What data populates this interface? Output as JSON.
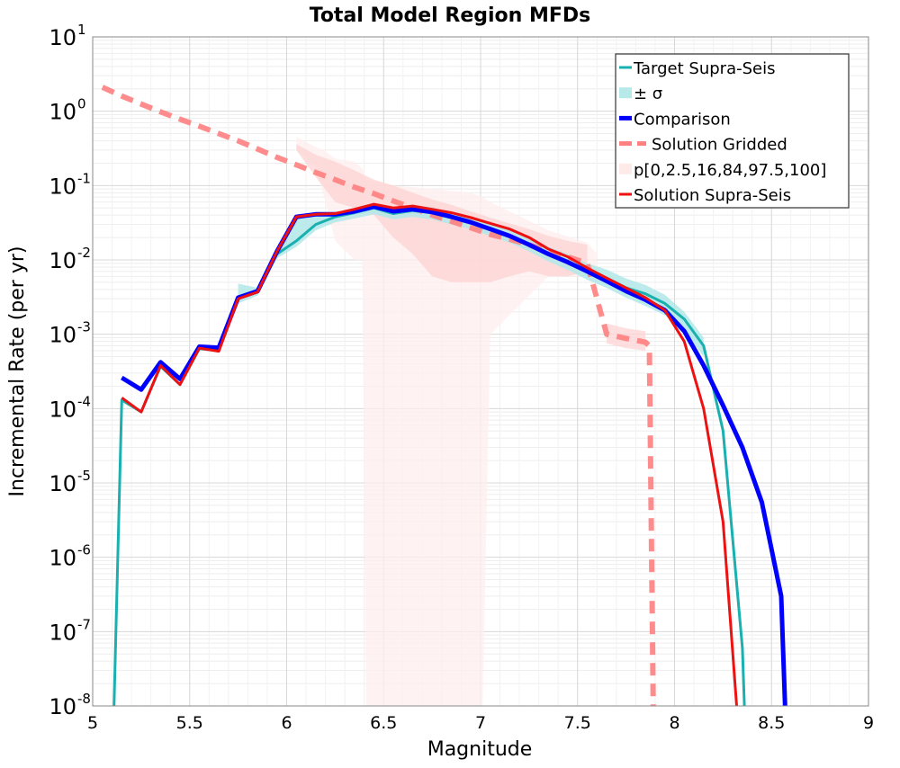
{
  "chart_data": {
    "type": "line",
    "title": "Total Model Region MFDs",
    "xlabel": "Magnitude",
    "ylabel": "Incremental Rate (per yr)",
    "xlim": [
      5,
      9
    ],
    "ylim": [
      1e-08,
      10
    ],
    "yscale": "log",
    "grid": true,
    "legend_position": "top-right",
    "x_ticks": [
      5,
      5.5,
      6,
      6.5,
      7,
      7.5,
      8,
      8.5,
      9
    ],
    "x_tick_labels": [
      "5",
      "5.5",
      "6",
      "6.5",
      "7",
      "7.5",
      "8",
      "8.5",
      "9"
    ],
    "y_tick_exponents": [
      -8,
      -7,
      -6,
      -5,
      -4,
      -3,
      -2,
      -1,
      0,
      1
    ],
    "y_tick_base": "10",
    "legend": [
      {
        "label": "Target Supra-Seis",
        "style": "line",
        "color": "#1ab0b0"
      },
      {
        "label": "± σ",
        "style": "band",
        "color": "#b8e9e9"
      },
      {
        "label": "Comparison",
        "style": "thick-line",
        "color": "#0000ff"
      },
      {
        "label": "Solution Gridded",
        "style": "dashed",
        "color": "#ff8080"
      },
      {
        "label": "p[0,2.5,16,84,97.5,100]",
        "style": "band",
        "color": "#ffeaea"
      },
      {
        "label": "Solution Supra-Seis",
        "style": "line",
        "color": "#ee1111"
      }
    ],
    "series": [
      {
        "name": "Target Supra-Seis",
        "color": "#1ab0b0",
        "x": [
          5.11,
          5.15,
          5.25,
          5.35,
          5.45,
          5.55,
          5.65,
          5.75,
          5.85,
          5.95,
          6.05,
          6.15,
          6.25,
          6.35,
          6.45,
          6.55,
          6.65,
          6.75,
          6.85,
          6.95,
          7.05,
          7.15,
          7.25,
          7.35,
          7.45,
          7.55,
          7.65,
          7.75,
          7.85,
          7.95,
          8.05,
          8.15,
          8.25,
          8.35,
          8.36
        ],
        "y": [
          1e-08,
          0.00013,
          9e-05,
          0.00037,
          0.00021,
          0.00064,
          0.0006,
          0.0031,
          0.0037,
          0.012,
          0.018,
          0.03,
          0.038,
          0.043,
          0.05,
          0.042,
          0.046,
          0.043,
          0.037,
          0.032,
          0.026,
          0.021,
          0.016,
          0.012,
          0.0093,
          0.007,
          0.0057,
          0.0042,
          0.0035,
          0.0026,
          0.0016,
          0.0007,
          5e-05,
          6e-08,
          1e-08
        ]
      },
      {
        "name": "Comparison",
        "color": "#0000ff",
        "x": [
          5.15,
          5.25,
          5.35,
          5.45,
          5.55,
          5.65,
          5.75,
          5.85,
          5.95,
          6.05,
          6.15,
          6.25,
          6.35,
          6.45,
          6.55,
          6.65,
          6.75,
          6.85,
          6.95,
          7.05,
          7.15,
          7.25,
          7.35,
          7.45,
          7.55,
          7.65,
          7.75,
          7.85,
          7.95,
          8.05,
          8.15,
          8.25,
          8.35,
          8.45,
          8.55,
          8.57
        ],
        "y": [
          0.00026,
          0.00018,
          0.00042,
          0.00025,
          0.00068,
          0.00066,
          0.0031,
          0.0038,
          0.013,
          0.038,
          0.041,
          0.041,
          0.045,
          0.052,
          0.045,
          0.048,
          0.044,
          0.038,
          0.032,
          0.026,
          0.021,
          0.016,
          0.012,
          0.0093,
          0.007,
          0.0052,
          0.0038,
          0.0029,
          0.0021,
          0.0011,
          0.00038,
          0.00011,
          3e-05,
          5.5e-06,
          3e-07,
          1e-08
        ]
      },
      {
        "name": "Solution Gridded",
        "color": "#ff8080",
        "dashed": true,
        "x": [
          5.05,
          5.15,
          5.25,
          5.35,
          5.45,
          5.55,
          5.65,
          5.75,
          5.85,
          5.95,
          6.05,
          6.15,
          6.25,
          6.35,
          6.45,
          6.55,
          6.65,
          6.75,
          6.85,
          6.95,
          7.05,
          7.15,
          7.25,
          7.35,
          7.45,
          7.55,
          7.65,
          7.75,
          7.85,
          7.87,
          7.89
        ],
        "y": [
          2.1,
          1.6,
          1.25,
          0.98,
          0.78,
          0.63,
          0.5,
          0.4,
          0.31,
          0.24,
          0.19,
          0.15,
          0.12,
          0.095,
          0.078,
          0.062,
          0.05,
          0.04,
          0.033,
          0.027,
          0.022,
          0.019,
          0.016,
          0.013,
          0.011,
          0.009,
          0.001,
          0.00088,
          0.00078,
          0.0007,
          1e-08
        ]
      },
      {
        "name": "Solution Supra-Seis",
        "color": "#ee1111",
        "x": [
          5.15,
          5.25,
          5.35,
          5.45,
          5.55,
          5.65,
          5.75,
          5.85,
          5.95,
          6.05,
          6.15,
          6.25,
          6.35,
          6.45,
          6.55,
          6.65,
          6.75,
          6.85,
          6.95,
          7.05,
          7.15,
          7.25,
          7.35,
          7.45,
          7.55,
          7.65,
          7.75,
          7.85,
          7.95,
          8.05,
          8.15,
          8.25,
          8.32
        ],
        "y": [
          0.00014,
          9e-05,
          0.00038,
          0.00021,
          0.00065,
          0.00059,
          0.003,
          0.0037,
          0.013,
          0.038,
          0.041,
          0.042,
          0.048,
          0.056,
          0.05,
          0.053,
          0.048,
          0.043,
          0.037,
          0.031,
          0.026,
          0.02,
          0.014,
          0.011,
          0.0078,
          0.0057,
          0.0042,
          0.0031,
          0.0021,
          0.0008,
          0.0001,
          3e-06,
          1e-08
        ]
      }
    ],
    "bands": [
      {
        "name": "Target Supra-Seis ± σ",
        "color": "#b2e8e8",
        "x": [
          5.75,
          5.85,
          5.95,
          6.05,
          6.15,
          6.25,
          6.35,
          6.45,
          6.55,
          6.65,
          6.75,
          6.85,
          6.95,
          7.05,
          7.15,
          7.25,
          7.35,
          7.45,
          7.55,
          7.65,
          7.75,
          7.85,
          7.95,
          8.05,
          8.15
        ],
        "lower": [
          0.0026,
          0.0033,
          0.0105,
          0.015,
          0.025,
          0.032,
          0.036,
          0.041,
          0.035,
          0.038,
          0.035,
          0.03,
          0.026,
          0.021,
          0.017,
          0.013,
          0.0095,
          0.0073,
          0.0054,
          0.0042,
          0.0031,
          0.0024,
          0.0018,
          0.0011,
          0.0005
        ],
        "upper": [
          0.0048,
          0.0042,
          0.0142,
          0.04,
          0.04,
          0.043,
          0.05,
          0.058,
          0.05,
          0.054,
          0.051,
          0.044,
          0.038,
          0.031,
          0.025,
          0.019,
          0.015,
          0.012,
          0.009,
          0.0074,
          0.0056,
          0.0046,
          0.0034,
          0.002,
          0.0009
        ]
      },
      {
        "name": "Gridded outer range",
        "color": "#ffeded",
        "x": [
          6.05,
          6.15,
          6.2,
          6.25,
          6.35,
          6.39,
          6.41,
          6.55,
          6.75,
          6.95,
          7.01,
          7.05,
          7.35,
          7.55,
          7.6
        ],
        "lower": [
          0.3,
          0.18,
          0.06,
          0.018,
          0.01,
          0.01,
          1e-08,
          1e-08,
          1e-08,
          1e-08,
          1e-08,
          0.001,
          0.006,
          0.006,
          0.003
        ],
        "upper": [
          0.45,
          0.33,
          0.29,
          0.23,
          0.21,
          0.17,
          0.12,
          0.1,
          0.09,
          0.08,
          0.07,
          0.06,
          0.025,
          0.017,
          0.012
        ]
      },
      {
        "name": "Gridded inner range",
        "color": "#fdd3d3",
        "x": [
          6.05,
          6.15,
          6.25,
          6.35,
          6.45,
          6.55,
          6.65,
          6.75,
          6.85,
          6.95,
          7.05,
          7.15,
          7.25,
          7.35,
          7.45,
          7.55
        ],
        "lower": [
          0.3,
          0.13,
          0.06,
          0.05,
          0.04,
          0.02,
          0.012,
          0.006,
          0.005,
          0.005,
          0.005,
          0.006,
          0.007,
          0.006,
          0.006,
          0.007
        ],
        "upper": [
          0.36,
          0.26,
          0.21,
          0.16,
          0.12,
          0.1,
          0.08,
          0.065,
          0.055,
          0.045,
          0.037,
          0.031,
          0.026,
          0.021,
          0.018,
          0.016
        ]
      },
      {
        "name": "Gridded tail range",
        "color": "#fdd3d3",
        "x": [
          7.65,
          7.75,
          7.85
        ],
        "lower": [
          0.00075,
          0.00065,
          0.0006
        ],
        "upper": [
          0.0014,
          0.0012,
          0.0011
        ]
      }
    ]
  }
}
